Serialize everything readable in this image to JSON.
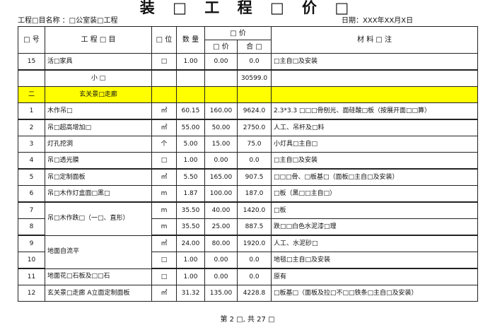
{
  "title": "装 □ 工 程 □ 价 □",
  "project_label": "工程□目名称 ：□公室装□工程",
  "date_label": "日期：XXX年XX月X日",
  "headers": {
    "no": "□ 号",
    "item": "工 程 □ 目",
    "unit": "□ 位",
    "qty": "数 量",
    "price_group": "□ 价",
    "unit_price": "□ 价",
    "total": "合 □",
    "remark": "材 料 □ 注"
  },
  "row15": {
    "no": "15",
    "item": "活□家具",
    "unit": "□",
    "qty": "1.00",
    "price": "0.00",
    "total": "0.0",
    "remark": "□主自□及安装"
  },
  "subtotal": {
    "label": "小 □",
    "total": "30599.0"
  },
  "section": {
    "no": "二",
    "name": "玄关景□走廊",
    "color": "#ffff00"
  },
  "rows": [
    {
      "no": "1",
      "item": "木作吊□",
      "unit": "㎡",
      "qty": "60.15",
      "price": "160.00",
      "total": "9624.0",
      "remark": "2.3*3.3 □□□骨刨光、面硅酸□板（按展开面□□算）"
    },
    {
      "no": "2",
      "item": "吊□超高增加□",
      "unit": "㎡",
      "qty": "55.00",
      "price": "50.00",
      "total": "2750.0",
      "remark": "人工、吊杆及□料"
    },
    {
      "no": "3",
      "item": "灯孔挖洞",
      "unit": "个",
      "qty": "5.00",
      "price": "15.00",
      "total": "75.0",
      "remark": "小灯具□主自□"
    },
    {
      "no": "4",
      "item": "吊□透光膜",
      "unit": "□",
      "qty": "1.00",
      "price": "0.00",
      "total": "0.0",
      "remark": "□主自□及安装"
    },
    {
      "no": "5",
      "item": "吊□定制面板",
      "unit": "㎡",
      "qty": "5.50",
      "price": "165.00",
      "total": "907.5",
      "remark": "□□□骨、□板基□（面板□主自□及安装）"
    },
    {
      "no": "6",
      "item": "吊□木作灯盒面□黑□",
      "unit": "m",
      "qty": "1.87",
      "price": "100.00",
      "total": "187.0",
      "remark": "□板（黑□□主自□）"
    },
    {
      "no": "7",
      "item": "吊□木作跌□（一□、直形）",
      "unit": "m",
      "qty": "35.50",
      "price": "40.00",
      "total": "1420.0",
      "remark": "□板"
    },
    {
      "no": "8",
      "unit": "m",
      "qty": "35.50",
      "price": "25.00",
      "total": "887.5",
      "remark": "跌□□白色水泥漆□理"
    },
    {
      "no": "9",
      "item": "地面自流平",
      "unit": "㎡",
      "qty": "24.00",
      "price": "80.00",
      "total": "1920.0",
      "remark": "人工、水泥砂□"
    },
    {
      "no": "10",
      "unit": "□",
      "qty": "1.00",
      "price": "0.00",
      "total": "0.0",
      "remark": "地毯□主自□及安装"
    },
    {
      "no": "11",
      "item": "地面花□石板及□□石",
      "unit": "□",
      "qty": "1.00",
      "price": "0.00",
      "total": "0.0",
      "remark": "原有"
    },
    {
      "no": "12",
      "item": "玄关景□走廊 A立面定制面板",
      "unit": "㎡",
      "qty": "31.32",
      "price": "135.00",
      "total": "4228.8",
      "remark": "□板基□（面板及拉□不□□铁条□主自□及安装）"
    }
  ],
  "footer": "第 2 □, 共 27 □"
}
